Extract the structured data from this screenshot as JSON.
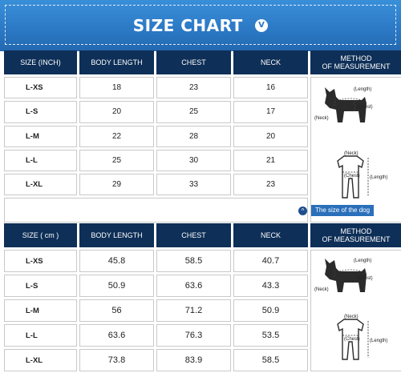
{
  "header": {
    "title": "SIZE CHART",
    "badge": "V"
  },
  "columns": [
    "SIZE (INCH)",
    "BODY LENGTH",
    "CHEST",
    "NECK"
  ],
  "columns_cm": [
    "SIZE ( cm )",
    "BODY LENGTH",
    "CHEST",
    "NECK"
  ],
  "method": {
    "line1": "METHOD",
    "line2": "OF MEASUREMENT"
  },
  "inch_rows": [
    {
      "size": "L-XS",
      "length": "18",
      "chest": "23",
      "neck": "16"
    },
    {
      "size": "L-S",
      "length": "20",
      "chest": "25",
      "neck": "17"
    },
    {
      "size": "L-M",
      "length": "22",
      "chest": "28",
      "neck": "20"
    },
    {
      "size": "L-L",
      "length": "25",
      "chest": "30",
      "neck": "21"
    },
    {
      "size": "L-XL",
      "length": "29",
      "chest": "33",
      "neck": "23"
    }
  ],
  "cm_rows": [
    {
      "size": "L-XS",
      "length": "45.8",
      "chest": "58.5",
      "neck": "40.7"
    },
    {
      "size": "L-S",
      "length": "50.9",
      "chest": "63.6",
      "neck": "43.3"
    },
    {
      "size": "L-M",
      "length": "56",
      "chest": "71.2",
      "neck": "50.9"
    },
    {
      "size": "L-L",
      "length": "63.6",
      "chest": "76.3",
      "neck": "53.5"
    },
    {
      "size": "L-XL",
      "length": "73.8",
      "chest": "83.9",
      "neck": "58.5"
    }
  ],
  "diagram_labels": {
    "length": "(Length)",
    "chest": "(Chest)",
    "neck": "(Neck)"
  },
  "caption": {
    "icon": "^",
    "text": "The size of the dog"
  },
  "colors": {
    "banner": "#2b78c4",
    "header_cell": "#0e2f57",
    "caption": "#2a6fba"
  }
}
